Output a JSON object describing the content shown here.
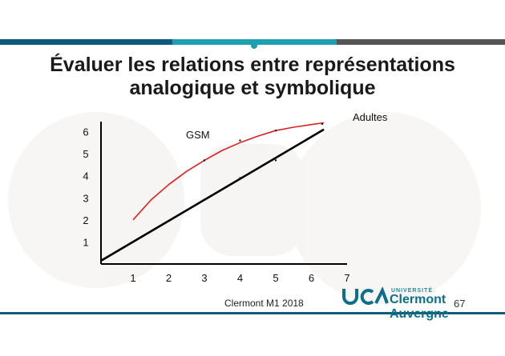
{
  "slide": {
    "title_line1": "Évaluer les relations entre représentations",
    "title_line2": "analogique et symbolique",
    "footer": "Clermont M1 2018",
    "page_number": "67",
    "logo": {
      "mark_text": "UCA",
      "small_text": "UNIVERSITÉ",
      "big_text": "Clermont Auvergne"
    },
    "colors": {
      "bar_dark": "#0e5a7a",
      "bar_teal": "#1ea0b0",
      "bar_grey": "#555555",
      "curve_red": "#e02020",
      "axis_black": "#000000",
      "logo_blue": "#0e6f8a"
    }
  },
  "chart_data": {
    "type": "line",
    "title": "",
    "xlabel": "",
    "ylabel": "",
    "x_ticks": [
      "1",
      "2",
      "3",
      "4",
      "5",
      "6",
      "7"
    ],
    "y_ticks": [
      "1",
      "2",
      "3",
      "4",
      "5",
      "6"
    ],
    "xlim": [
      0.1,
      7
    ],
    "ylim": [
      0,
      6.6
    ],
    "series": [
      {
        "name": "GSM",
        "color": "#e02020",
        "x": [
          1,
          1.5,
          2,
          2.5,
          3,
          3.5,
          4,
          4.5,
          5,
          5.5,
          6,
          6.35
        ],
        "y": [
          2.0,
          2.9,
          3.6,
          4.2,
          4.7,
          5.15,
          5.5,
          5.8,
          6.05,
          6.2,
          6.32,
          6.4
        ]
      },
      {
        "name": "Adultes",
        "color": "#000000",
        "x": [
          0.1,
          6.35
        ],
        "y": [
          0.15,
          6.1
        ]
      }
    ],
    "points": [
      {
        "x": 1,
        "y": 1.0
      },
      {
        "x": 3,
        "y": 4.7
      },
      {
        "x": 4,
        "y": 3.9
      },
      {
        "x": 4,
        "y": 5.6
      },
      {
        "x": 5,
        "y": 4.7
      },
      {
        "x": 5,
        "y": 6.05
      },
      {
        "x": 6.3,
        "y": 6.35
      }
    ]
  }
}
